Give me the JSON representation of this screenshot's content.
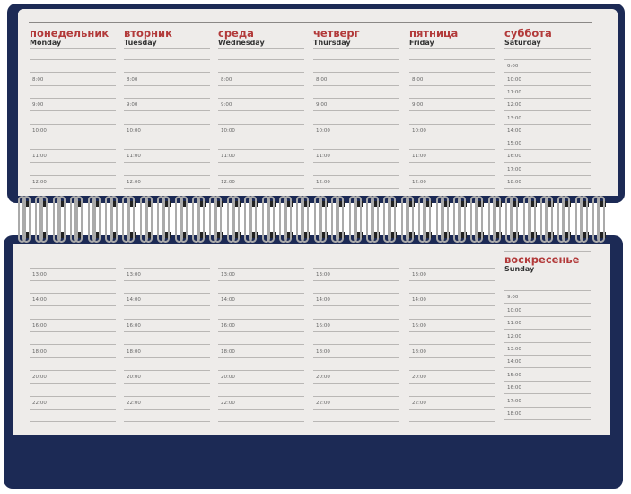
{
  "top_page": {
    "days": [
      {
        "ru": "понедельник",
        "en": "Monday",
        "times": [
          "",
          "",
          "8:00",
          "",
          "9:00",
          "",
          "10:00",
          "",
          "11:00",
          "",
          "12:00"
        ]
      },
      {
        "ru": "вторник",
        "en": "Tuesday",
        "times": [
          "",
          "",
          "8:00",
          "",
          "9:00",
          "",
          "10:00",
          "",
          "11:00",
          "",
          "12:00"
        ]
      },
      {
        "ru": "среда",
        "en": "Wednesday",
        "times": [
          "",
          "",
          "8:00",
          "",
          "9:00",
          "",
          "10:00",
          "",
          "11:00",
          "",
          "12:00"
        ]
      },
      {
        "ru": "четверг",
        "en": "Thursday",
        "times": [
          "",
          "",
          "8:00",
          "",
          "9:00",
          "",
          "10:00",
          "",
          "11:00",
          "",
          "12:00"
        ]
      },
      {
        "ru": "пятница",
        "en": "Friday",
        "times": [
          "",
          "",
          "8:00",
          "",
          "9:00",
          "",
          "10:00",
          "",
          "11:00",
          "",
          "12:00"
        ]
      },
      {
        "ru": "суббота",
        "en": "Saturday",
        "times": [
          "",
          "9:00",
          "10:00",
          "11:00",
          "12:00",
          "13:00",
          "14:00",
          "15:00",
          "16:00",
          "17:00",
          "18:00"
        ]
      }
    ]
  },
  "bottom_page": {
    "columns": [
      {
        "times": [
          "",
          "13:00",
          "",
          "14:00",
          "",
          "16:00",
          "",
          "18:00",
          "",
          "20:00",
          "",
          "22:00",
          ""
        ]
      },
      {
        "times": [
          "",
          "13:00",
          "",
          "14:00",
          "",
          "16:00",
          "",
          "18:00",
          "",
          "20:00",
          "",
          "22:00",
          ""
        ]
      },
      {
        "times": [
          "",
          "13:00",
          "",
          "14:00",
          "",
          "16:00",
          "",
          "18:00",
          "",
          "20:00",
          "",
          "22:00",
          ""
        ]
      },
      {
        "times": [
          "",
          "13:00",
          "",
          "14:00",
          "",
          "16:00",
          "",
          "18:00",
          "",
          "20:00",
          "",
          "22:00",
          ""
        ]
      },
      {
        "times": [
          "",
          "13:00",
          "",
          "14:00",
          "",
          "16:00",
          "",
          "18:00",
          "",
          "20:00",
          "",
          "22:00",
          ""
        ]
      }
    ],
    "sunday": {
      "ru": "воскресенье",
      "en": "Sunday",
      "times": [
        "",
        "9:00",
        "10:00",
        "11:00",
        "12:00",
        "13:00",
        "14:00",
        "15:00",
        "16:00",
        "17:00",
        "18:00"
      ]
    }
  },
  "colors": {
    "cover": "#1c2a55",
    "heading_ru": "#b23a3a",
    "paper": "#eeecea"
  }
}
